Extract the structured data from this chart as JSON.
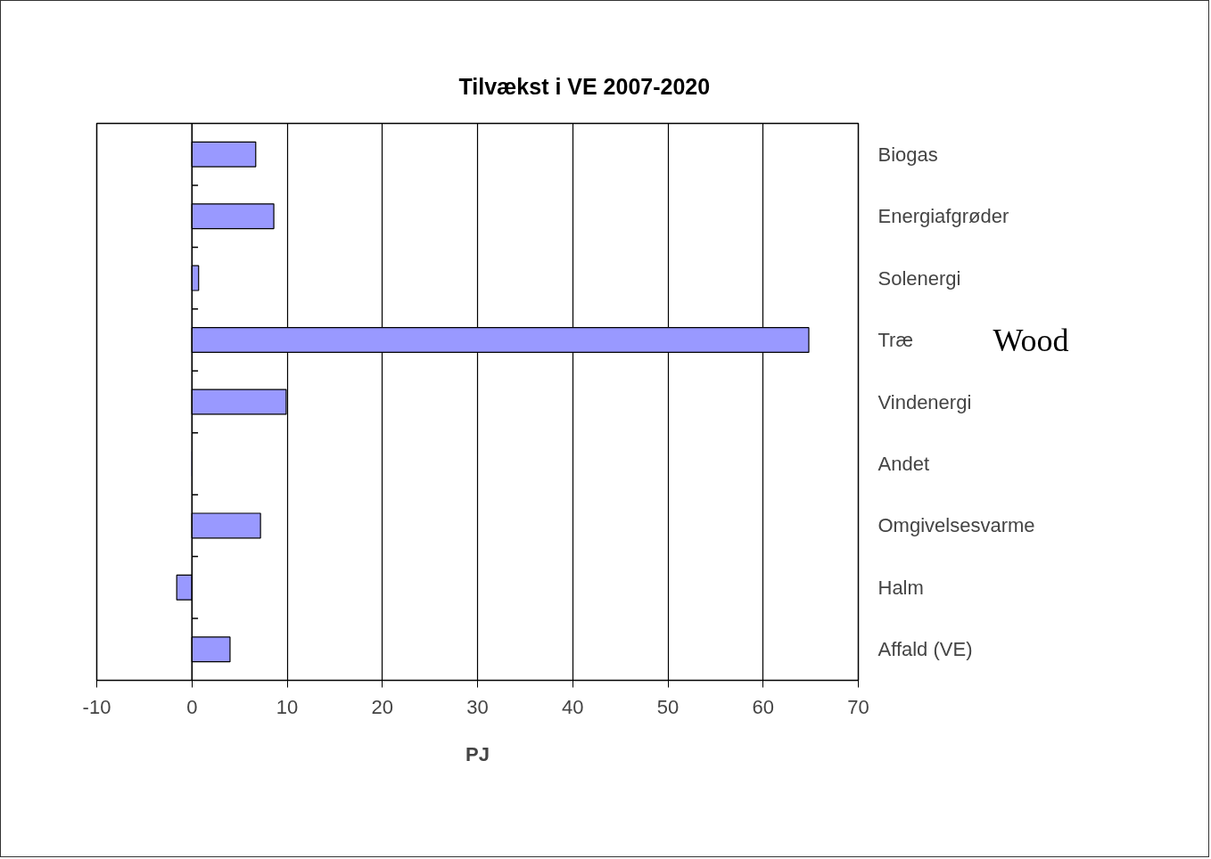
{
  "chart_data": {
    "type": "bar",
    "orientation": "horizontal",
    "title": "Tilvækst i VE 2007-2020",
    "xlabel": "PJ",
    "categories": [
      "Biogas",
      "Energiafgrøder",
      "Solenergi",
      "Træ",
      "Vindenergi",
      "Andet",
      "Omgivelsesvarme",
      "Halm",
      "Affald (VE)"
    ],
    "values": [
      6.7,
      8.6,
      0.7,
      64.8,
      9.9,
      0,
      7.2,
      -1.6,
      4.0
    ],
    "color": "#9999ff",
    "xlim": [
      -10,
      70
    ],
    "xticks": [
      -10,
      0,
      10,
      20,
      30,
      40,
      50,
      60,
      70
    ],
    "grid": "x",
    "legend": false,
    "annotations": [
      "Wood"
    ]
  }
}
